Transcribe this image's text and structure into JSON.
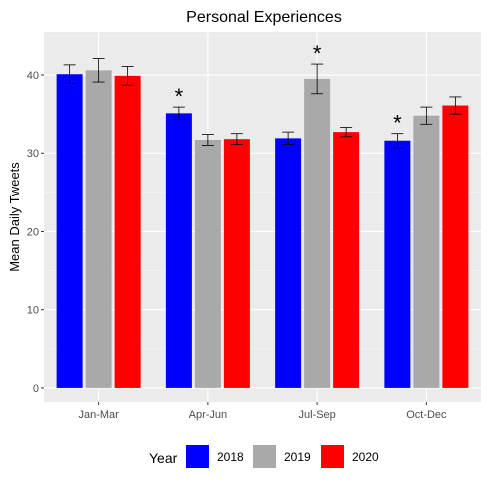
{
  "chart_data": {
    "type": "bar",
    "title": "Personal Experiences",
    "xlabel": "",
    "ylabel": "Mean Daily Tweets",
    "categories": [
      "Jan-Mar",
      "Apr-Jun",
      "Jul-Sep",
      "Oct-Dec"
    ],
    "yticks": [
      "0",
      "10",
      "20",
      "30",
      "40"
    ],
    "ylim": [
      -1.8,
      45.5
    ],
    "grid": true,
    "legend": {
      "title": "Year",
      "position": "bottom"
    },
    "series": [
      {
        "name": "2018",
        "color": "#0000ff",
        "values": [
          40.1,
          35.1,
          31.9,
          31.6
        ],
        "error": [
          1.2,
          0.8,
          0.8,
          0.9
        ]
      },
      {
        "name": "2019",
        "color": "#a9a9a9",
        "values": [
          40.6,
          31.7,
          39.5,
          34.8
        ],
        "error": [
          1.5,
          0.7,
          1.9,
          1.1
        ]
      },
      {
        "name": "2020",
        "color": "#ff0000",
        "values": [
          39.9,
          31.8,
          32.7,
          36.1
        ],
        "error": [
          1.2,
          0.7,
          0.6,
          1.1
        ]
      }
    ],
    "annotations": [
      {
        "text": "*",
        "category": "Apr-Jun",
        "series": "2018"
      },
      {
        "text": "*",
        "category": "Jul-Sep",
        "series": "2019"
      },
      {
        "text": "*",
        "category": "Oct-Dec",
        "series": "2018"
      }
    ]
  }
}
